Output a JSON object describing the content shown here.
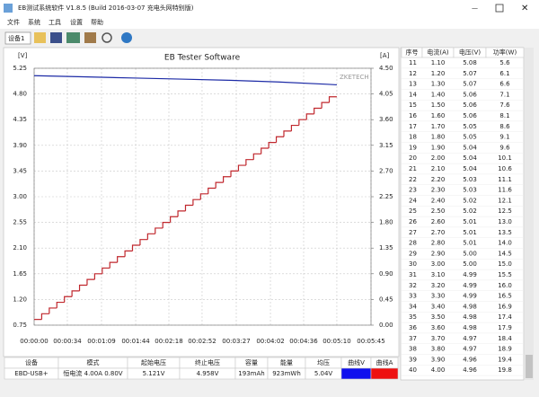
{
  "window": {
    "title": "EB测试系统软件 V1.8.5 (Build 2016-03-07 充电头网特别版)"
  },
  "menu": [
    "文件",
    "系统",
    "工具",
    "设置",
    "帮助"
  ],
  "toolbar": {
    "device": "设备1"
  },
  "chart_data": {
    "type": "line",
    "title": "EB Tester Software",
    "y_label": "[V]",
    "y2_label": "[A]",
    "watermark": "ZKETECH",
    "xlim": [
      0,
      345
    ],
    "xticks": [
      {
        "value": 0,
        "label": "00:00:00"
      },
      {
        "value": 34,
        "label": "00:00:34"
      },
      {
        "value": 69,
        "label": "00:01:09"
      },
      {
        "value": 104,
        "label": "00:01:44"
      },
      {
        "value": 138,
        "label": "00:02:18"
      },
      {
        "value": 172,
        "label": "00:02:52"
      },
      {
        "value": 207,
        "label": "00:03:27"
      },
      {
        "value": 242,
        "label": "00:04:02"
      },
      {
        "value": 276,
        "label": "00:04:36"
      },
      {
        "value": 310,
        "label": "00:05:10"
      },
      {
        "value": 345,
        "label": "00:05:45"
      }
    ],
    "ylim": [
      0.75,
      5.25
    ],
    "yticks": [
      0.75,
      {
        "value": 1.2,
        "label": "1.20"
      },
      1.65,
      {
        "value": 2.1,
        "label": "2.10"
      },
      2.55,
      {
        "value": 3,
        "label": "3.00"
      },
      3.45,
      {
        "value": 3.9,
        "label": "3.90"
      },
      4.35,
      {
        "value": 4.8,
        "label": "4.80"
      },
      5.25
    ],
    "y2lim": [
      0,
      4.5
    ],
    "y2ticks": [
      {
        "value": 0,
        "label": "0.00"
      },
      0.45,
      {
        "value": 0.9,
        "label": "0.90"
      },
      1.35,
      {
        "value": 1.8,
        "label": "1.80"
      },
      2.25,
      {
        "value": 2.7,
        "label": "2.70"
      },
      3.15,
      {
        "value": 3.6,
        "label": "3.60"
      },
      4.05,
      {
        "value": 4.5,
        "label": "4.50"
      }
    ],
    "grid": true,
    "series": [
      {
        "color": "#1c2aa6",
        "x": [
          0,
          50,
          100,
          150,
          200,
          250,
          300,
          310
        ],
        "values": [
          5.12,
          5.1,
          5.08,
          5.06,
          5.04,
          5.01,
          4.97,
          4.96
        ]
      },
      {
        "color": "#c0272d",
        "axis": "y2",
        "line_style": "step",
        "x": [
          0,
          7.75,
          15.5,
          23.25,
          31,
          38.75,
          46.5,
          54.25,
          62,
          69.75,
          77.5,
          85.25,
          93,
          100.75,
          108.5,
          116.25,
          124,
          131.75,
          139.5,
          147.25,
          155,
          162.75,
          170.5,
          178.25,
          186,
          193.75,
          201.5,
          209.25,
          217,
          224.75,
          232.5,
          240.25,
          248,
          255.75,
          263.5,
          271.25,
          279,
          286.75,
          294.5,
          302.25,
          310
        ],
        "values": [
          0.1,
          0.2,
          0.3,
          0.4,
          0.5,
          0.6,
          0.7,
          0.8,
          0.9,
          1.0,
          1.1,
          1.2,
          1.3,
          1.4,
          1.5,
          1.6,
          1.7,
          1.8,
          1.9,
          2.0,
          2.1,
          2.2,
          2.3,
          2.4,
          2.5,
          2.6,
          2.7,
          2.8,
          2.9,
          3.0,
          3.1,
          3.2,
          3.3,
          3.4,
          3.5,
          3.6,
          3.7,
          3.8,
          3.9,
          4.0,
          4.0
        ]
      }
    ]
  },
  "summary": {
    "headers": [
      "设备",
      "模式",
      "起始电压",
      "终止电压",
      "容量",
      "能量",
      "均压",
      "曲线V",
      "曲线A"
    ],
    "row": [
      "EBD-USB+",
      "恒电流 4.00A 0.80V",
      "5.121V",
      "4.958V",
      "193mAh",
      "923mWh",
      "5.04V"
    ]
  },
  "log_table": {
    "headers": [
      "序号",
      "电流(A)",
      "电压(V)",
      "功率(W)"
    ],
    "rows": [
      [
        "11",
        "1.10",
        "5.08",
        "5.6"
      ],
      [
        "12",
        "1.20",
        "5.07",
        "6.1"
      ],
      [
        "13",
        "1.30",
        "5.07",
        "6.6"
      ],
      [
        "14",
        "1.40",
        "5.06",
        "7.1"
      ],
      [
        "15",
        "1.50",
        "5.06",
        "7.6"
      ],
      [
        "16",
        "1.60",
        "5.06",
        "8.1"
      ],
      [
        "17",
        "1.70",
        "5.05",
        "8.6"
      ],
      [
        "18",
        "1.80",
        "5.05",
        "9.1"
      ],
      [
        "19",
        "1.90",
        "5.04",
        "9.6"
      ],
      [
        "20",
        "2.00",
        "5.04",
        "10.1"
      ],
      [
        "21",
        "2.10",
        "5.04",
        "10.6"
      ],
      [
        "22",
        "2.20",
        "5.03",
        "11.1"
      ],
      [
        "23",
        "2.30",
        "5.03",
        "11.6"
      ],
      [
        "24",
        "2.40",
        "5.02",
        "12.1"
      ],
      [
        "25",
        "2.50",
        "5.02",
        "12.5"
      ],
      [
        "26",
        "2.60",
        "5.01",
        "13.0"
      ],
      [
        "27",
        "2.70",
        "5.01",
        "13.5"
      ],
      [
        "28",
        "2.80",
        "5.01",
        "14.0"
      ],
      [
        "29",
        "2.90",
        "5.00",
        "14.5"
      ],
      [
        "30",
        "3.00",
        "5.00",
        "15.0"
      ],
      [
        "31",
        "3.10",
        "4.99",
        "15.5"
      ],
      [
        "32",
        "3.20",
        "4.99",
        "16.0"
      ],
      [
        "33",
        "3.30",
        "4.99",
        "16.5"
      ],
      [
        "34",
        "3.40",
        "4.98",
        "16.9"
      ],
      [
        "35",
        "3.50",
        "4.98",
        "17.4"
      ],
      [
        "36",
        "3.60",
        "4.98",
        "17.9"
      ],
      [
        "37",
        "3.70",
        "4.97",
        "18.4"
      ],
      [
        "38",
        "3.80",
        "4.97",
        "18.9"
      ],
      [
        "39",
        "3.90",
        "4.96",
        "19.4"
      ],
      [
        "40",
        "4.00",
        "4.96",
        "19.8"
      ]
    ]
  }
}
